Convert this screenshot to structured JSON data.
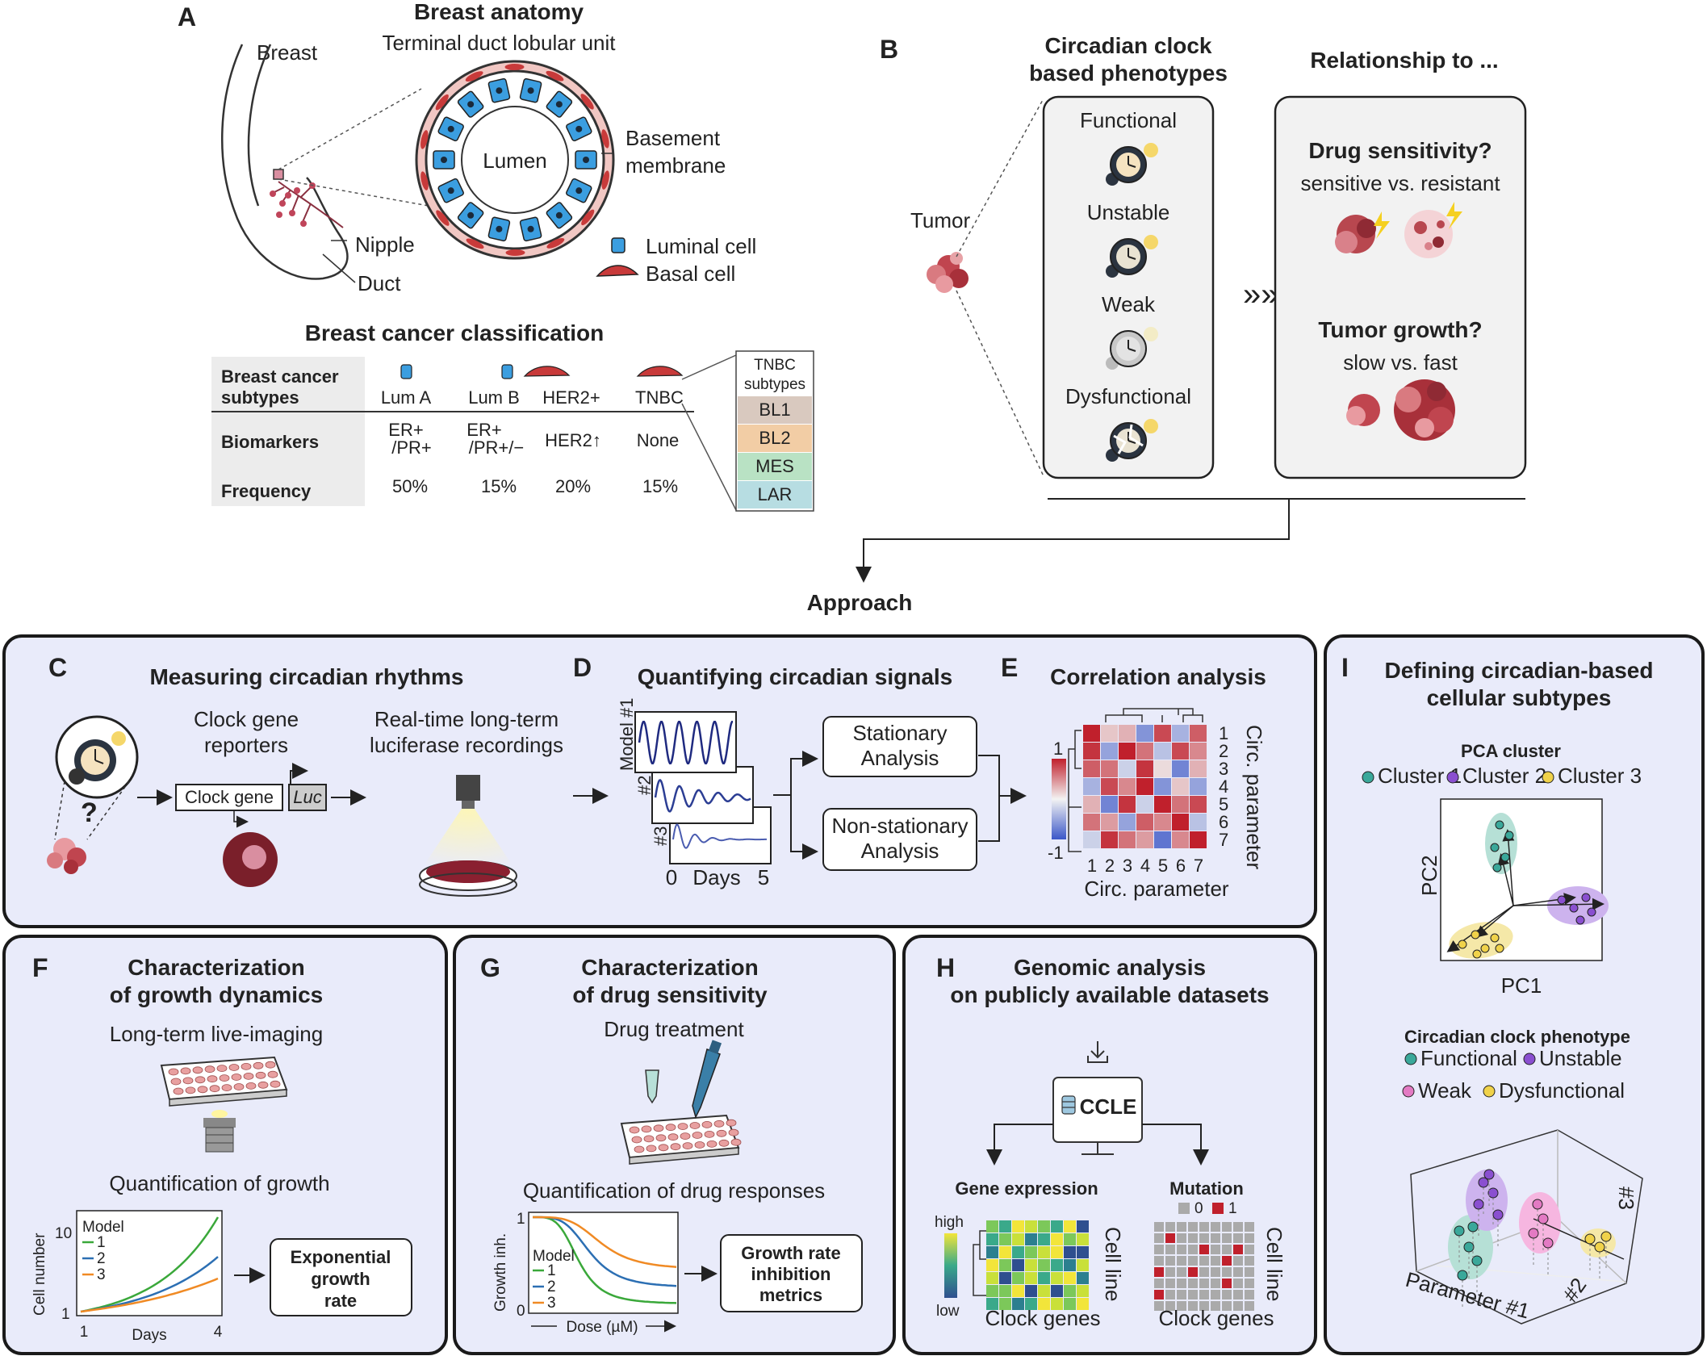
{
  "panelA": {
    "label": "A",
    "title": "Breast anatomy",
    "subtitle": "Terminal duct lobular unit",
    "breast": "Breast",
    "lumen": "Lumen",
    "basement": [
      "Basement",
      "membrane"
    ],
    "nipple": "Nipple",
    "duct": "Duct",
    "luminal": "Luminal cell",
    "basal": "Basal cell",
    "classTitle": "Breast cancer classification",
    "rowHeaders": [
      [
        "Breast cancer",
        "subtypes"
      ],
      "Biomarkers",
      "Frequency"
    ],
    "subtypes": [
      "Lum A",
      "Lum B",
      "HER2+",
      "TNBC"
    ],
    "biomarkers": [
      [
        "ER+",
        "/PR+"
      ],
      [
        "ER+",
        "/PR+/−"
      ],
      "HER2↑",
      "None"
    ],
    "frequency": [
      "50%",
      "15%",
      "20%",
      "15%"
    ],
    "tnbcHeader": [
      "TNBC",
      "subtypes"
    ],
    "tnbc": [
      {
        "name": "BL1",
        "color": "#d9c9bf"
      },
      {
        "name": "BL2",
        "color": "#f2cda5"
      },
      {
        "name": "MES",
        "color": "#b9e2c4"
      },
      {
        "name": "LAR",
        "color": "#b7dde2"
      }
    ]
  },
  "panelB": {
    "label": "B",
    "heading1": [
      "Circadian clock",
      "based phenotypes"
    ],
    "heading2": "Relationship to ...",
    "tumor": "Tumor",
    "phenotypes": [
      "Functional",
      "Unstable",
      "Weak",
      "Dysfunctional"
    ],
    "drug": "Drug sensitivity?",
    "drugSub": "sensitive vs. resistant",
    "growth": "Tumor growth?",
    "growthSub": "slow vs. fast"
  },
  "approach": "Approach",
  "panelC": {
    "label": "C",
    "title": "Measuring circadian rhythms",
    "reporters": [
      "Clock gene",
      "reporters"
    ],
    "recordings": [
      "Real-time long-term",
      "luciferase recordings"
    ],
    "clockGene": "Clock gene",
    "luc": "Luc",
    "q": "?"
  },
  "panelD": {
    "label": "D",
    "title": "Quantifying circadian signals",
    "models": [
      "Model #1",
      "#2",
      "#3"
    ],
    "axis": [
      "0",
      "Days",
      "5"
    ],
    "stationary": [
      "Stationary",
      "Analysis"
    ],
    "nonstationary": [
      "Non-stationary",
      "Analysis"
    ]
  },
  "panelE": {
    "label": "E",
    "title": "Correlation analysis",
    "scale": [
      "1",
      "-1"
    ],
    "ticks": [
      "1",
      "2",
      "3",
      "4",
      "5",
      "6",
      "7"
    ],
    "xlabel": "Circ. parameter",
    "ylabel": "Circ. parameter"
  },
  "panelF": {
    "label": "F",
    "title": [
      "Characterization",
      "of growth dynamics"
    ],
    "imaging": "Long-term live-imaging",
    "quant": "Quantification of growth",
    "ylabel": "Cell number",
    "yticks": [
      "10",
      "1"
    ],
    "xticks": [
      "1",
      "4"
    ],
    "xlabel": "Days",
    "legendTitle": "Model",
    "legend": [
      "1",
      "2",
      "3"
    ],
    "result": [
      "Exponential",
      "growth",
      "rate"
    ]
  },
  "panelG": {
    "label": "G",
    "title": [
      "Characterization",
      "of drug sensitivity"
    ],
    "treatment": "Drug treatment",
    "quant": "Quantification of drug responses",
    "ylabel": "Growth inh.",
    "yticks": [
      "1",
      "0"
    ],
    "xlabel": "Dose (µM)",
    "legendTitle": "Model",
    "legend": [
      "1",
      "2",
      "3"
    ],
    "result": [
      "Growth rate",
      "inhibition",
      "metrics"
    ]
  },
  "panelH": {
    "label": "H",
    "title": [
      "Genomic analysis",
      "on publicly available datasets"
    ],
    "ccle": "CCLE",
    "expr": "Gene expression",
    "mut": "Mutation",
    "high": "high",
    "low": "low",
    "cellLine": "Cell line",
    "clockGenes": "Clock genes",
    "mutLegend": [
      "0",
      "1"
    ]
  },
  "panelI": {
    "label": "I",
    "title": [
      "Defining circadian-based",
      "cellular subtypes"
    ],
    "pca": "PCA cluster",
    "clusters": [
      {
        "name": "Cluster 1",
        "color": "#3aa89a"
      },
      {
        "name": "Cluster 2",
        "color": "#8a4fd0"
      },
      {
        "name": "Cluster 3",
        "color": "#f0d24a"
      }
    ],
    "pc1": "PC1",
    "pc2": "PC2",
    "phenoTitle": "Circadian clock phenotype",
    "phenos": [
      {
        "name": "Functional",
        "color": "#3aa89a"
      },
      {
        "name": "Unstable",
        "color": "#8a4fd0"
      },
      {
        "name": "Weak",
        "color": "#e37ac3"
      },
      {
        "name": "Dysfunctional",
        "color": "#f0d24a"
      }
    ],
    "p1": "Parameter #1",
    "p2": "#2",
    "p3": "#3"
  },
  "colors": {
    "panelBg": "#e9ebfa",
    "panelBorder": "#1a1a1a",
    "luminal": "#3b9ee0",
    "basal": "#c83a3a",
    "tumor": "#c0454f",
    "heatRed": "#c0202c",
    "heatBlue": "#3b57c8"
  }
}
